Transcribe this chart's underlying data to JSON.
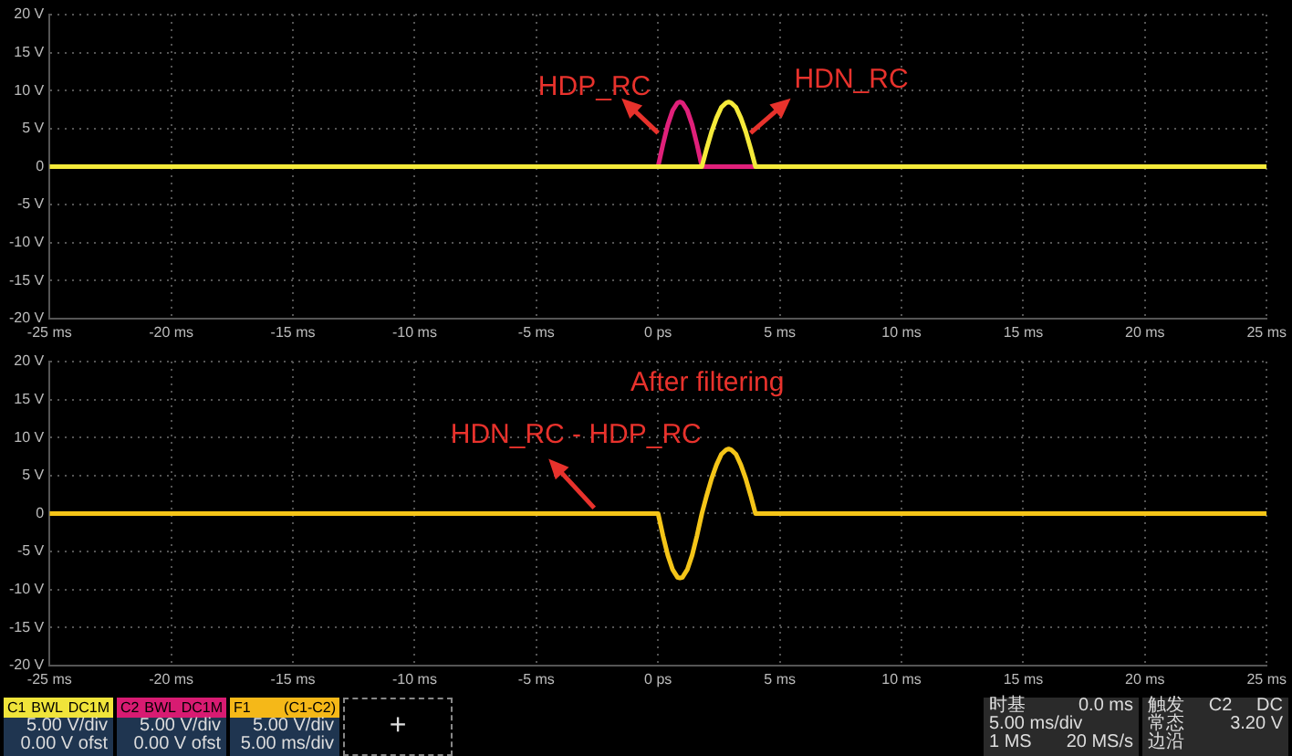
{
  "chart_data": [
    {
      "type": "line",
      "xlim": [
        -25,
        25
      ],
      "ylim": [
        -20,
        20
      ],
      "grid": true,
      "xticks": [
        {
          "value": -25,
          "label": "-25 ms"
        },
        {
          "value": -20,
          "label": "-20 ms"
        },
        {
          "value": -15,
          "label": "-15 ms"
        },
        {
          "value": -10,
          "label": "-10 ms"
        },
        {
          "value": -5,
          "label": "-5 ms"
        },
        {
          "value": 0,
          "label": "0 ps"
        },
        {
          "value": 5,
          "label": "5 ms"
        },
        {
          "value": 10,
          "label": "10 ms"
        },
        {
          "value": 15,
          "label": "15 ms"
        },
        {
          "value": 20,
          "label": "20 ms"
        },
        {
          "value": 25,
          "label": "25 ms"
        }
      ],
      "yticks": [
        {
          "value": -20,
          "label": "-20 V"
        },
        {
          "value": -15,
          "label": "-15 V"
        },
        {
          "value": -10,
          "label": "-10 V"
        },
        {
          "value": -5,
          "label": "-5 V"
        },
        0,
        {
          "value": 5,
          "label": "5 V"
        },
        {
          "value": 10,
          "label": "10 V"
        },
        {
          "value": 15,
          "label": "15 V"
        },
        {
          "value": 20,
          "label": "20 V"
        }
      ],
      "series": [
        {
          "name": "HDP_RC",
          "color": "#e0207a",
          "x": [
            -0.1,
            0,
            0.2,
            0.4,
            0.6,
            0.8,
            0.9,
            1.0,
            1.2,
            1.4,
            1.6,
            1.8,
            2.4,
            3.0,
            3.6,
            4.0
          ],
          "values": [
            0,
            0,
            2.9,
            5.5,
            7.4,
            8.4,
            8.5,
            8.4,
            7.4,
            5.5,
            2.9,
            0,
            0,
            0,
            0,
            0
          ]
        },
        {
          "name": "HDN_RC",
          "color": "#f5ea3a",
          "x": [
            -25,
            1.8,
            2.0,
            2.2,
            2.4,
            2.6,
            2.8,
            2.9,
            3.0,
            3.2,
            3.4,
            3.6,
            3.8,
            4.0,
            25
          ],
          "values": [
            0,
            0,
            2.4,
            4.6,
            6.4,
            7.8,
            8.4,
            8.5,
            8.4,
            7.8,
            6.4,
            4.6,
            2.4,
            0,
            0
          ]
        }
      ]
    },
    {
      "type": "line",
      "title": "After filtering",
      "xlim": [
        -25,
        25
      ],
      "ylim": [
        -20,
        20
      ],
      "grid": true,
      "xticks": [
        {
          "value": -25,
          "label": "-25 ms"
        },
        {
          "value": -20,
          "label": "-20 ms"
        },
        {
          "value": -15,
          "label": "-15 ms"
        },
        {
          "value": -10,
          "label": "-10 ms"
        },
        {
          "value": -5,
          "label": "-5 ms"
        },
        {
          "value": 0,
          "label": "0 ps"
        },
        {
          "value": 5,
          "label": "5 ms"
        },
        {
          "value": 10,
          "label": "10 ms"
        },
        {
          "value": 15,
          "label": "15 ms"
        },
        {
          "value": 20,
          "label": "20 ms"
        },
        {
          "value": 25,
          "label": "25 ms"
        }
      ],
      "yticks": [
        {
          "value": -20,
          "label": "-20 V"
        },
        {
          "value": -15,
          "label": "-15 V"
        },
        {
          "value": -10,
          "label": "-10 V"
        },
        {
          "value": -5,
          "label": "-5 V"
        },
        0,
        {
          "value": 5,
          "label": "5 V"
        },
        {
          "value": 10,
          "label": "10 V"
        },
        {
          "value": 15,
          "label": "15 V"
        },
        {
          "value": 20,
          "label": "20 V"
        }
      ],
      "series": [
        {
          "name": "HDN_RC - HDP_RC",
          "color": "#f5c518",
          "x": [
            -25,
            -0.1,
            0,
            0.2,
            0.4,
            0.6,
            0.8,
            0.9,
            1.0,
            1.2,
            1.4,
            1.6,
            1.8,
            2.0,
            2.2,
            2.4,
            2.6,
            2.8,
            2.9,
            3.0,
            3.2,
            3.4,
            3.6,
            3.8,
            4.0,
            25
          ],
          "values": [
            0,
            0,
            0,
            -2.9,
            -5.5,
            -7.4,
            -8.4,
            -8.5,
            -8.4,
            -7.4,
            -5.5,
            -2.9,
            0,
            2.4,
            4.6,
            6.4,
            7.8,
            8.4,
            8.5,
            8.4,
            7.8,
            6.4,
            4.6,
            2.4,
            0,
            0
          ]
        }
      ]
    },
    {
      "type": "other",
      "annotations": [
        "C1",
        "BWL",
        "DC1M",
        "5.00 V/div",
        "0.00 V ofst",
        "C2",
        "BWL",
        "DC1M",
        "5.00 V/div",
        "0.00 V ofst",
        "F1",
        "(C1-C2)",
        "5.00 V/div",
        "5.00 ms/div",
        "+",
        "时基",
        "0.0 ms",
        "5.00 ms/div",
        "1 MS",
        "20 MS/s",
        "触发",
        "C2",
        "DC",
        "常态",
        "3.20 V",
        "边沿"
      ]
    }
  ]
}
